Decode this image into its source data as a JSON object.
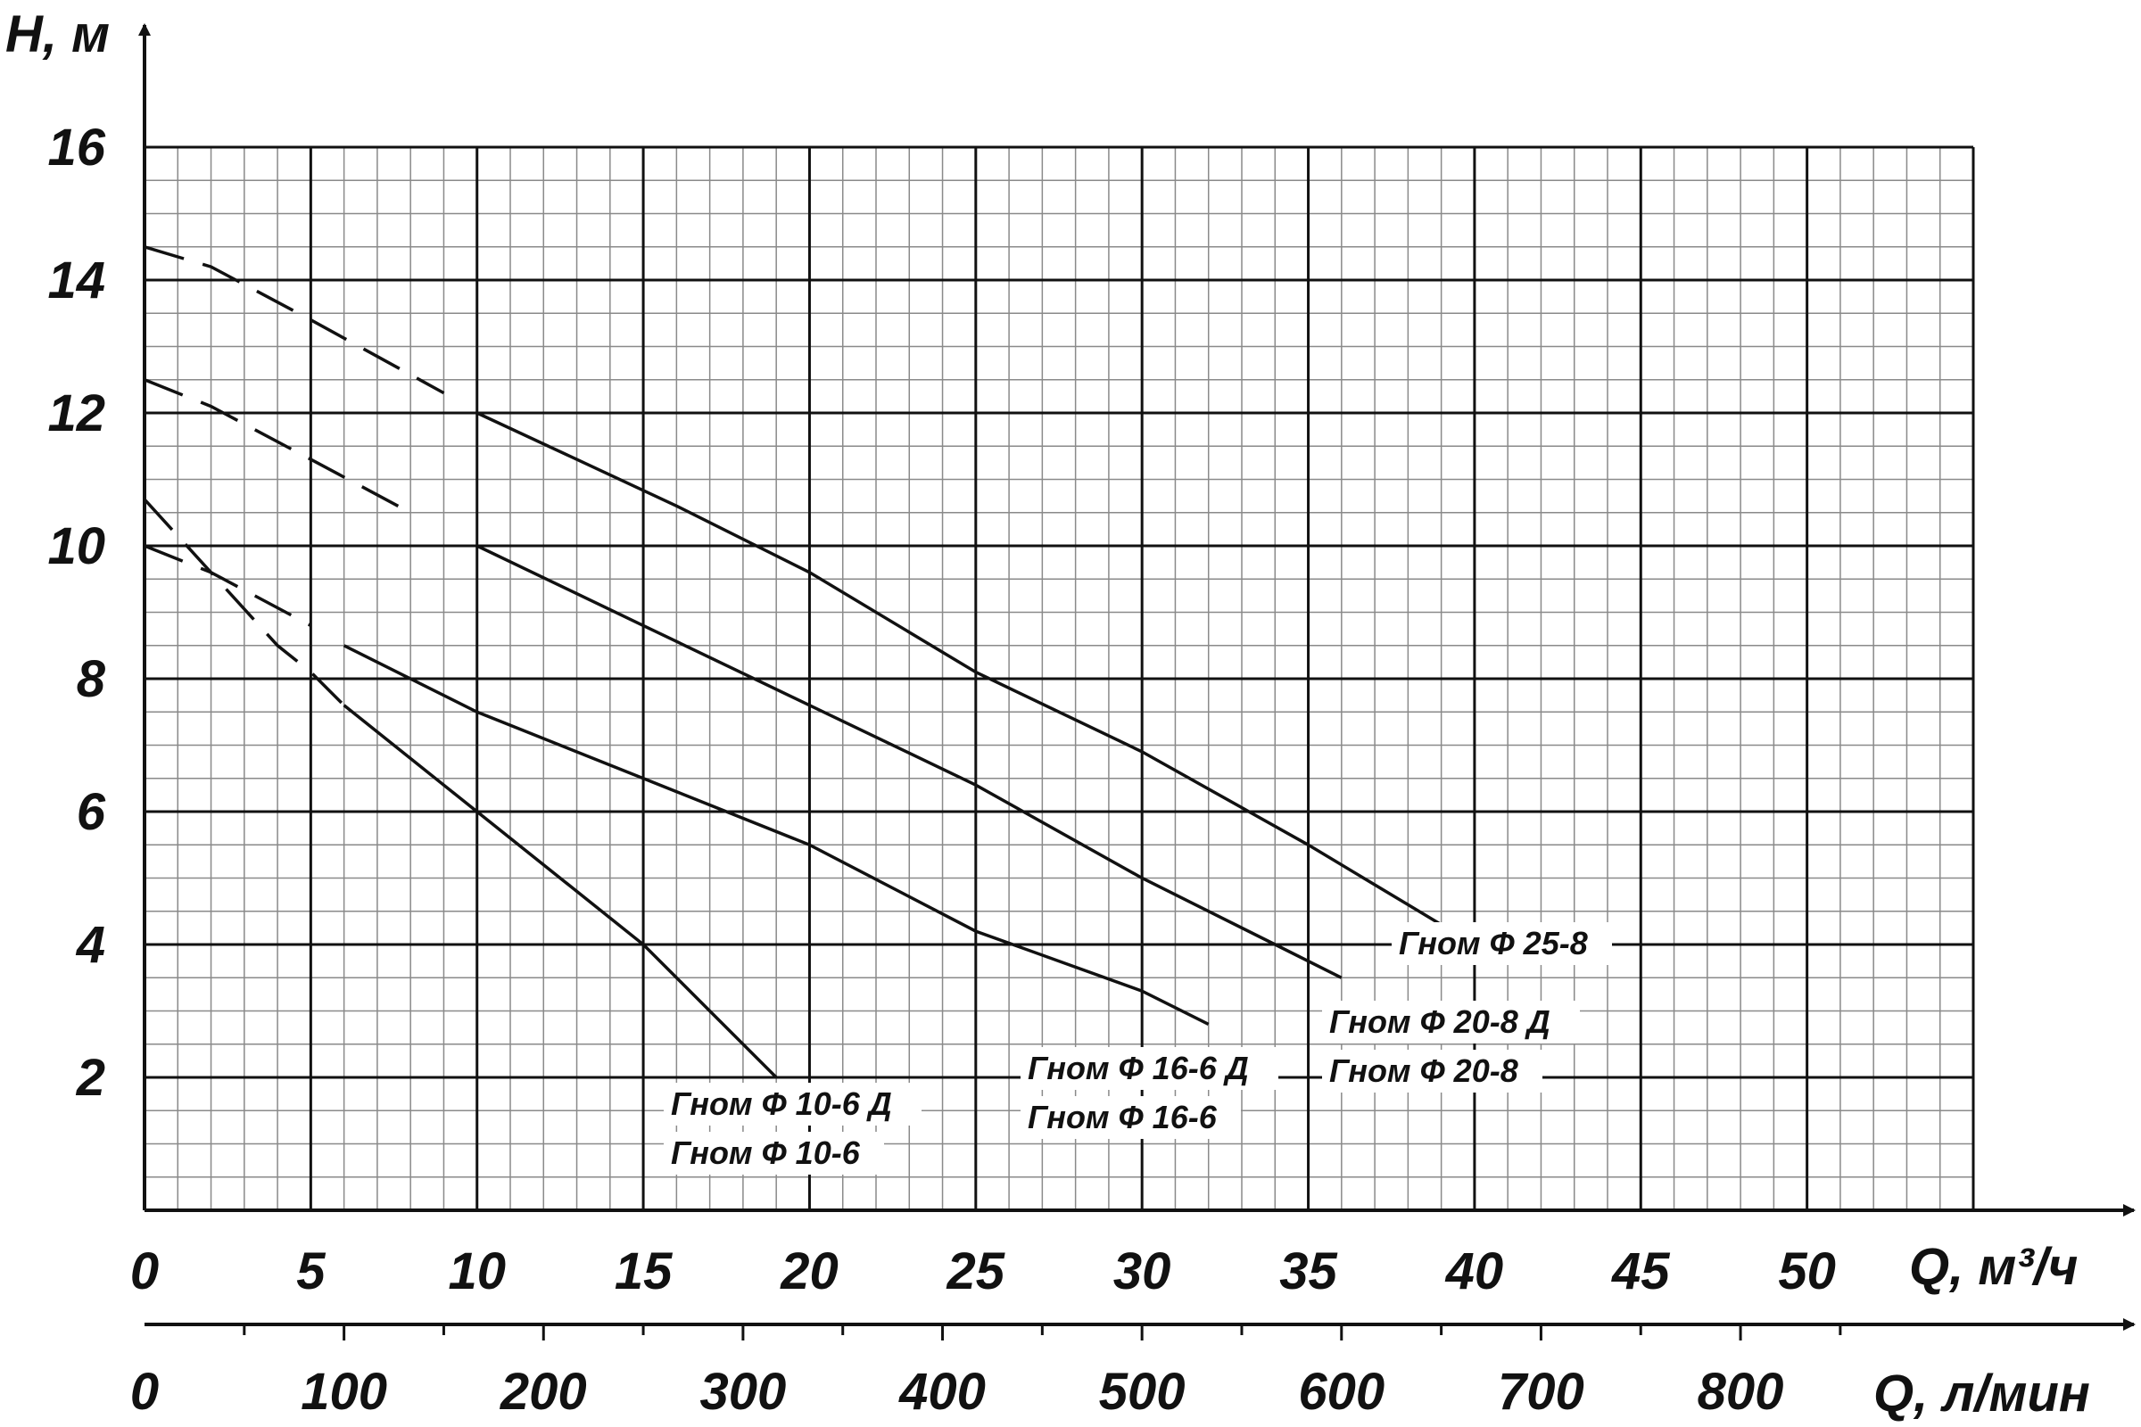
{
  "chart_data": {
    "type": "line",
    "ylabel": "H, м",
    "xlabel": "Q, м³/ч",
    "xlabel_secondary": "Q, л/мин",
    "xlim": [
      0,
      55
    ],
    "ylim": [
      0,
      16
    ],
    "x_ticks": [
      "0",
      "5",
      "10",
      "15",
      "20",
      "25",
      "30",
      "35",
      "40",
      "45",
      "50"
    ],
    "y_ticks": [
      "2",
      "4",
      "6",
      "8",
      "10",
      "12",
      "14",
      "16"
    ],
    "x2_ticks": [
      "0",
      "100",
      "200",
      "300",
      "400",
      "500",
      "600",
      "700",
      "800"
    ],
    "x2_scale_note_units": "1 м³/ч = 16.667 л/мин",
    "grid": true,
    "series": [
      {
        "labels": [
          "Гном Ф 25-8"
        ],
        "dashed": [
          [
            0,
            14.5
          ],
          [
            2,
            14.2
          ],
          [
            5,
            13.4
          ],
          [
            9,
            12.3
          ]
        ],
        "solid": [
          [
            10,
            12.0
          ],
          [
            13,
            11.3
          ],
          [
            16,
            10.6
          ],
          [
            20,
            9.6
          ],
          [
            25,
            8.1
          ],
          [
            30,
            6.9
          ],
          [
            35,
            5.5
          ],
          [
            39,
            4.3
          ]
        ]
      },
      {
        "labels": [
          "Гном Ф 20-8 Д",
          "Гном Ф 20-8"
        ],
        "dashed": [
          [
            0,
            12.5
          ],
          [
            2,
            12.1
          ],
          [
            5,
            11.3
          ],
          [
            8,
            10.5
          ]
        ],
        "solid": [
          [
            10,
            10.0
          ],
          [
            15,
            8.8
          ],
          [
            20,
            7.6
          ],
          [
            25,
            6.4
          ],
          [
            30,
            5.0
          ],
          [
            34,
            4.0
          ],
          [
            36,
            3.5
          ]
        ]
      },
      {
        "labels": [
          "Гном Ф 16-6 Д",
          "Гном Ф 16-6"
        ],
        "dashed": [
          [
            0,
            10.0
          ],
          [
            2,
            9.6
          ],
          [
            5,
            8.8
          ]
        ],
        "solid": [
          [
            6,
            8.5
          ],
          [
            10,
            7.5
          ],
          [
            15,
            6.5
          ],
          [
            20,
            5.5
          ],
          [
            25,
            4.2
          ],
          [
            30,
            3.3
          ],
          [
            32,
            2.8
          ]
        ]
      },
      {
        "labels": [
          "Гном Ф 10-6 Д",
          "Гном Ф 10-6"
        ],
        "dashed": [
          [
            0,
            10.7
          ],
          [
            2,
            9.6
          ],
          [
            4,
            8.5
          ],
          [
            5,
            8.1
          ],
          [
            6,
            7.6
          ]
        ],
        "solid": [
          [
            6,
            7.6
          ],
          [
            10,
            6.0
          ],
          [
            15,
            4.0
          ],
          [
            17,
            3.0
          ],
          [
            19,
            2.0
          ]
        ]
      }
    ]
  }
}
